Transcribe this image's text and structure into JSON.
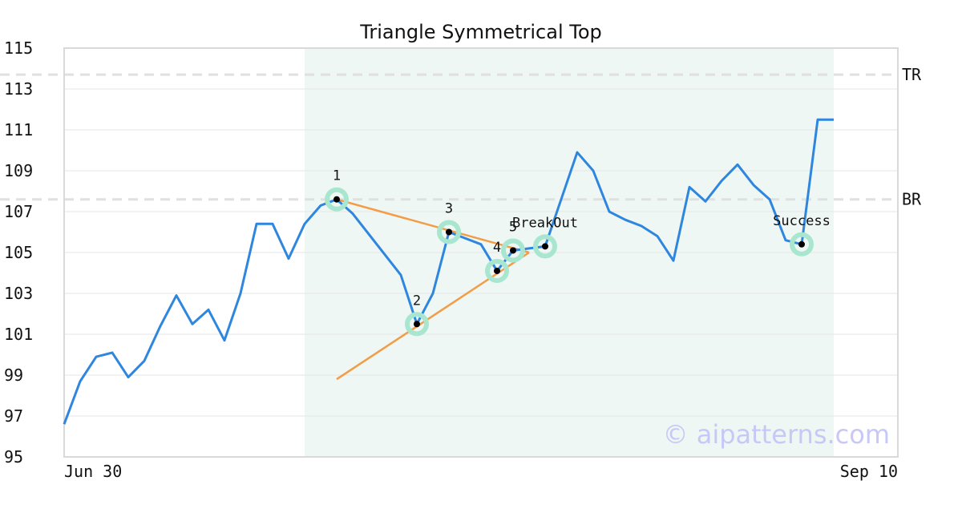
{
  "chart_data": {
    "type": "line",
    "title": "Triangle Symmetrical Top",
    "xlabel": "",
    "ylabel": "",
    "ylim": [
      95,
      115
    ],
    "yticks": [
      "95",
      "97",
      "99",
      "101",
      "103",
      "105",
      "107",
      "109",
      "111",
      "113",
      "115"
    ],
    "xtick_labels": {
      "start": "Jun 30",
      "end": "Sep 10"
    },
    "grid": "horizontal",
    "series": [
      {
        "color": "#2e86de",
        "x": [
          0,
          1,
          2,
          3,
          4,
          5,
          6,
          7,
          8,
          9,
          10,
          11,
          12,
          13,
          14,
          15,
          16,
          17,
          18,
          19,
          20,
          21,
          22,
          23,
          24,
          25,
          26,
          27,
          28,
          29,
          30,
          31,
          32,
          33,
          34,
          35,
          36,
          37,
          38,
          39,
          40,
          41,
          42,
          43,
          44,
          45,
          46,
          47,
          48
        ],
        "values": [
          96.6,
          98.7,
          99.9,
          100.1,
          98.9,
          99.7,
          101.4,
          102.9,
          101.5,
          102.2,
          100.7,
          103.0,
          106.4,
          106.4,
          104.7,
          106.4,
          107.3,
          107.6,
          106.9,
          105.9,
          104.9,
          103.9,
          101.5,
          103.0,
          106.0,
          105.7,
          105.4,
          104.1,
          105.1,
          105.2,
          105.3,
          107.6,
          109.9,
          109.0,
          107.0,
          106.6,
          106.3,
          105.8,
          104.6,
          108.2,
          107.5,
          108.5,
          109.3,
          108.3,
          107.6,
          105.6,
          105.4,
          111.5,
          111.5
        ]
      }
    ],
    "reference_lines": [
      {
        "label": "TR",
        "value": 113.7,
        "color": "#e0e0e0"
      },
      {
        "label": "BR",
        "value": 107.6,
        "color": "#e0e0e0"
      }
    ],
    "highlight_region": {
      "x_start": 15,
      "x_end": 48,
      "color": "#eef7f3"
    },
    "trendlines": [
      {
        "color": "#f39c45",
        "x": [
          17,
          29
        ],
        "values": [
          107.6,
          105.0
        ]
      },
      {
        "color": "#f39c45",
        "x": [
          17,
          29
        ],
        "values": [
          98.8,
          105.0
        ]
      }
    ],
    "annotations": [
      {
        "label": "1",
        "x": 17,
        "value": 107.6
      },
      {
        "label": "2",
        "x": 22,
        "value": 101.5
      },
      {
        "label": "3",
        "x": 24,
        "value": 106.0
      },
      {
        "label": "4",
        "x": 27,
        "value": 104.1
      },
      {
        "label": "5",
        "x": 28,
        "value": 105.1
      },
      {
        "label": "BreakOut",
        "x": 30,
        "value": 105.3
      },
      {
        "label": "Success",
        "x": 46,
        "value": 105.4
      }
    ],
    "marker_color": "#a8e6cf"
  },
  "watermark": "© aipatterns.com"
}
